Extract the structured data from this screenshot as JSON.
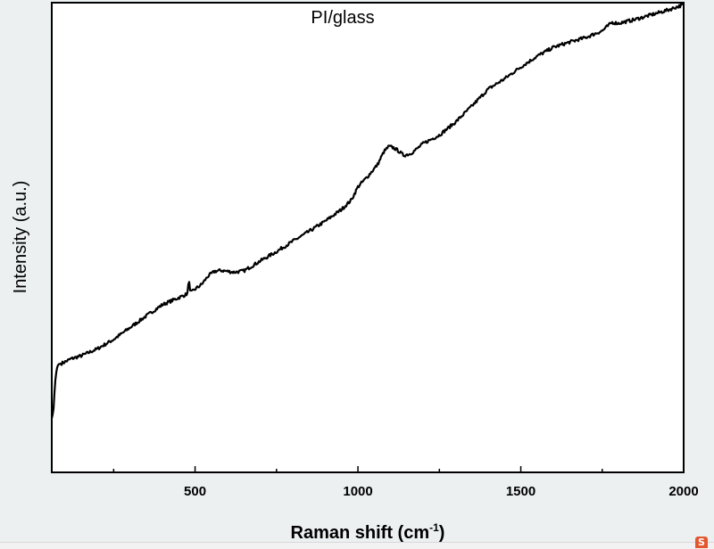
{
  "chart_data": {
    "type": "line",
    "title": "PI/glass",
    "xlabel_main": "Raman shift (cm",
    "xlabel_sup": "-1",
    "xlabel_end": ")",
    "ylabel": "Intensity (a.u.)",
    "xlim": [
      60,
      2000
    ],
    "ylim": [
      0,
      100
    ],
    "x_ticks": [
      500,
      1000,
      1500,
      2000
    ],
    "x_minor_ticks": [
      250,
      750,
      1250,
      1750
    ],
    "y_tick_labels": "none",
    "grid": false,
    "series": [
      {
        "color": "#000000",
        "x": [
          60,
          65,
          70,
          75,
          80,
          90,
          100,
          120,
          150,
          200,
          250,
          300,
          350,
          400,
          450,
          470,
          478,
          481,
          484,
          490,
          500,
          520,
          540,
          560,
          580,
          600,
          620,
          650,
          700,
          750,
          800,
          850,
          900,
          950,
          980,
          1000,
          1030,
          1060,
          1080,
          1095,
          1110,
          1125,
          1140,
          1160,
          1180,
          1200,
          1250,
          1300,
          1350,
          1400,
          1450,
          1500,
          1550,
          1600,
          1650,
          1700,
          1750,
          1780,
          1800,
          1850,
          1900,
          1950,
          2000
        ],
        "y": [
          11.5,
          13.0,
          19.0,
          22.0,
          23.0,
          23.2,
          23.5,
          24.2,
          24.8,
          26.3,
          28.3,
          30.8,
          33.3,
          35.7,
          37.2,
          37.8,
          38.2,
          42.0,
          38.5,
          38.4,
          39.0,
          40.0,
          41.8,
          42.8,
          43.0,
          42.8,
          42.6,
          42.9,
          45.0,
          47.0,
          49.2,
          51.3,
          53.5,
          56.0,
          58.0,
          60.8,
          63.0,
          65.5,
          68.3,
          69.4,
          69.1,
          68.4,
          67.5,
          67.8,
          68.8,
          70.0,
          71.8,
          74.6,
          78.0,
          81.6,
          83.8,
          86.3,
          88.6,
          90.5,
          91.6,
          92.6,
          94.0,
          95.8,
          95.6,
          96.4,
          97.4,
          98.4,
          99.6
        ]
      }
    ]
  }
}
